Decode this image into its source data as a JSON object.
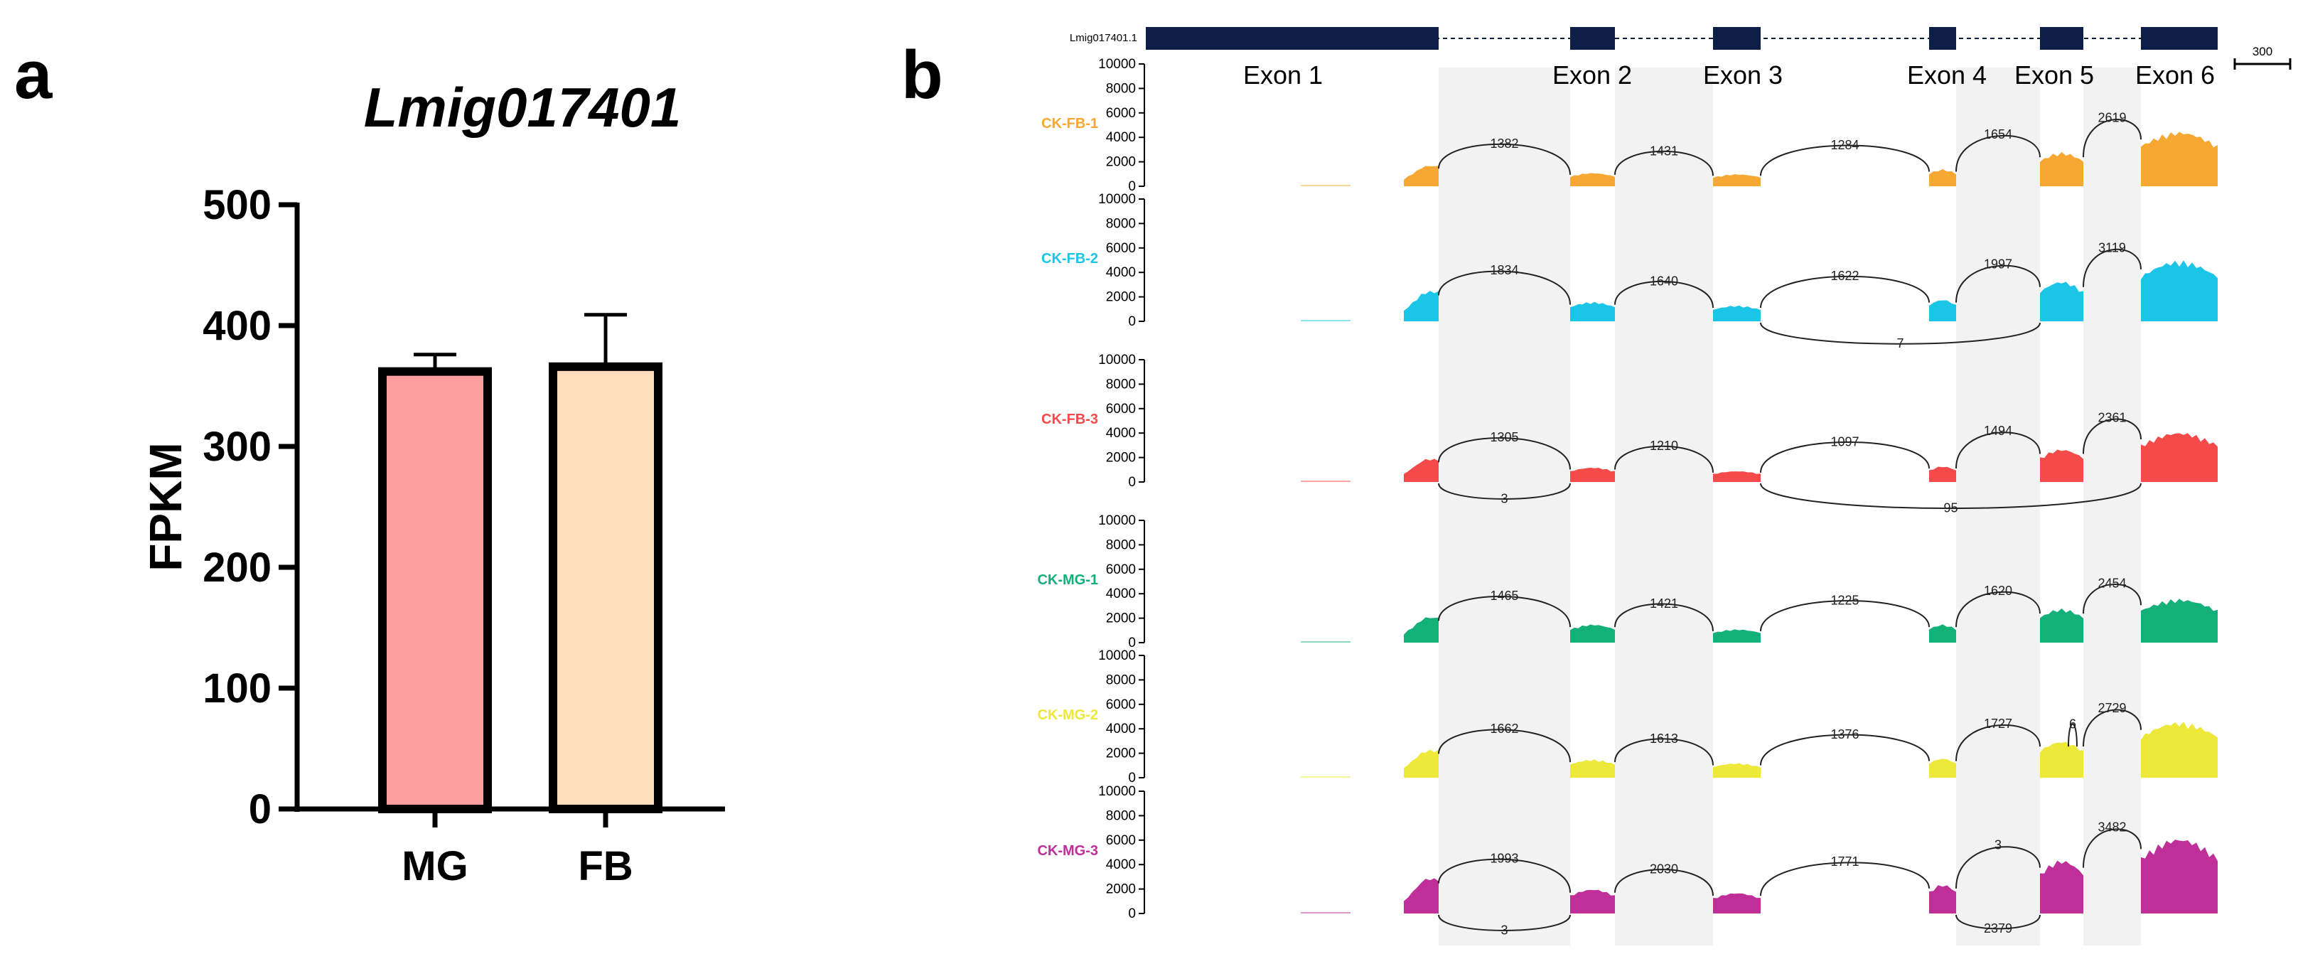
{
  "panels": {
    "a_letter": "a",
    "b_letter": "b"
  },
  "chart_data": [
    {
      "type": "bar",
      "title": "Lmig017401",
      "xlabel": "",
      "ylabel": "FPKM",
      "categories": [
        "MG",
        "FB"
      ],
      "values": [
        362,
        366
      ],
      "error_upper": [
        376,
        409
      ],
      "colors": [
        "#FF9E9E",
        "#FFDDBD"
      ],
      "ylim": [
        0,
        500
      ],
      "yticks": [
        0,
        100,
        200,
        300,
        400,
        500
      ],
      "grid": false
    },
    {
      "type": "area",
      "subtype": "sashimi",
      "gene_id": "Lmig017401.1",
      "scale_bar_label": "300",
      "exons": [
        "Exon 1",
        "Exon 2",
        "Exon 3",
        "Exon 4",
        "Exon 5",
        "Exon 6"
      ],
      "ylim": [
        0,
        10000
      ],
      "yticks": [
        0,
        2000,
        4000,
        6000,
        8000,
        10000
      ],
      "samples": [
        {
          "name": "CK-FB-1",
          "color": "#F7A833",
          "exon_peaks": [
            1700,
            1100,
            1000,
            1400,
            2800,
            4500
          ],
          "junctions": [
            {
              "from": "Exon 1",
              "to": "Exon 2",
              "count": 1382,
              "side": "top"
            },
            {
              "from": "Exon 2",
              "to": "Exon 3",
              "count": 1431,
              "side": "top"
            },
            {
              "from": "Exon 3",
              "to": "Exon 4",
              "count": 1284,
              "side": "top"
            },
            {
              "from": "Exon 4",
              "to": "Exon 5",
              "count": 1654,
              "side": "top"
            },
            {
              "from": "Exon 5",
              "to": "Exon 6",
              "count": 2619,
              "side": "top"
            }
          ]
        },
        {
          "name": "CK-FB-2",
          "color": "#1BC5E8",
          "exon_peaks": [
            2500,
            1600,
            1300,
            1800,
            3300,
            5000
          ],
          "junctions": [
            {
              "from": "Exon 1",
              "to": "Exon 2",
              "count": 1834,
              "side": "top"
            },
            {
              "from": "Exon 2",
              "to": "Exon 3",
              "count": 1640,
              "side": "top"
            },
            {
              "from": "Exon 3",
              "to": "Exon 4",
              "count": 1622,
              "side": "top"
            },
            {
              "from": "Exon 4",
              "to": "Exon 5",
              "count": 1997,
              "side": "top"
            },
            {
              "from": "Exon 5",
              "to": "Exon 6",
              "count": 3119,
              "side": "top"
            },
            {
              "from": "Exon 3",
              "to": "Exon 5",
              "count": 7,
              "side": "bottom"
            }
          ]
        },
        {
          "name": "CK-FB-3",
          "color": "#F54A4A",
          "exon_peaks": [
            1900,
            1200,
            900,
            1300,
            2700,
            4100
          ],
          "junctions": [
            {
              "from": "Exon 1",
              "to": "Exon 2",
              "count": 1305,
              "side": "top"
            },
            {
              "from": "Exon 2",
              "to": "Exon 3",
              "count": 1210,
              "side": "top"
            },
            {
              "from": "Exon 3",
              "to": "Exon 4",
              "count": 1097,
              "side": "top"
            },
            {
              "from": "Exon 4",
              "to": "Exon 5",
              "count": 1494,
              "side": "top"
            },
            {
              "from": "Exon 5",
              "to": "Exon 6",
              "count": 2361,
              "side": "top"
            },
            {
              "from": "Exon 1",
              "to": "Exon 2",
              "count": 3,
              "side": "bottom"
            },
            {
              "from": "Exon 3",
              "to": "Exon 6",
              "count": 95,
              "side": "bottom"
            }
          ]
        },
        {
          "name": "CK-MG-1",
          "color": "#14B07A",
          "exon_peaks": [
            2100,
            1500,
            1100,
            1500,
            2800,
            3600
          ],
          "junctions": [
            {
              "from": "Exon 1",
              "to": "Exon 2",
              "count": 1465,
              "side": "top"
            },
            {
              "from": "Exon 2",
              "to": "Exon 3",
              "count": 1421,
              "side": "top"
            },
            {
              "from": "Exon 3",
              "to": "Exon 4",
              "count": 1225,
              "side": "top"
            },
            {
              "from": "Exon 4",
              "to": "Exon 5",
              "count": 1620,
              "side": "top"
            },
            {
              "from": "Exon 5",
              "to": "Exon 6",
              "count": 2454,
              "side": "top"
            }
          ]
        },
        {
          "name": "CK-MG-2",
          "color": "#EDE83A",
          "exon_peaks": [
            2300,
            1500,
            1200,
            1600,
            3000,
            4600
          ],
          "junctions": [
            {
              "from": "Exon 1",
              "to": "Exon 2",
              "count": 1662,
              "side": "top"
            },
            {
              "from": "Exon 2",
              "to": "Exon 3",
              "count": 1613,
              "side": "top"
            },
            {
              "from": "Exon 3",
              "to": "Exon 4",
              "count": 1376,
              "side": "top"
            },
            {
              "from": "Exon 4",
              "to": "Exon 5",
              "count": 1727,
              "side": "top"
            },
            {
              "from": "Exon 5",
              "to": "Exon 6",
              "count": 2729,
              "side": "top"
            },
            {
              "from": "Exon 5",
              "to": "Exon 5",
              "count": 6,
              "side": "top-small"
            }
          ]
        },
        {
          "name": "CK-MG-3",
          "color": "#C02E9A",
          "exon_peaks": [
            2900,
            2000,
            1700,
            2400,
            4400,
            6200
          ],
          "junctions": [
            {
              "from": "Exon 1",
              "to": "Exon 2",
              "count": 1993,
              "side": "top"
            },
            {
              "from": "Exon 2",
              "to": "Exon 3",
              "count": 2030,
              "side": "top"
            },
            {
              "from": "Exon 3",
              "to": "Exon 4",
              "count": 1771,
              "side": "top"
            },
            {
              "from": "Exon 4",
              "to": "Exon 5",
              "count": 3,
              "side": "top"
            },
            {
              "from": "Exon 5",
              "to": "Exon 6",
              "count": 3482,
              "side": "top"
            },
            {
              "from": "Exon 1",
              "to": "Exon 2",
              "count": 3,
              "side": "bottom"
            },
            {
              "from": "Exon 4",
              "to": "Exon 5",
              "count": 2379,
              "side": "bottom"
            }
          ]
        }
      ]
    }
  ]
}
